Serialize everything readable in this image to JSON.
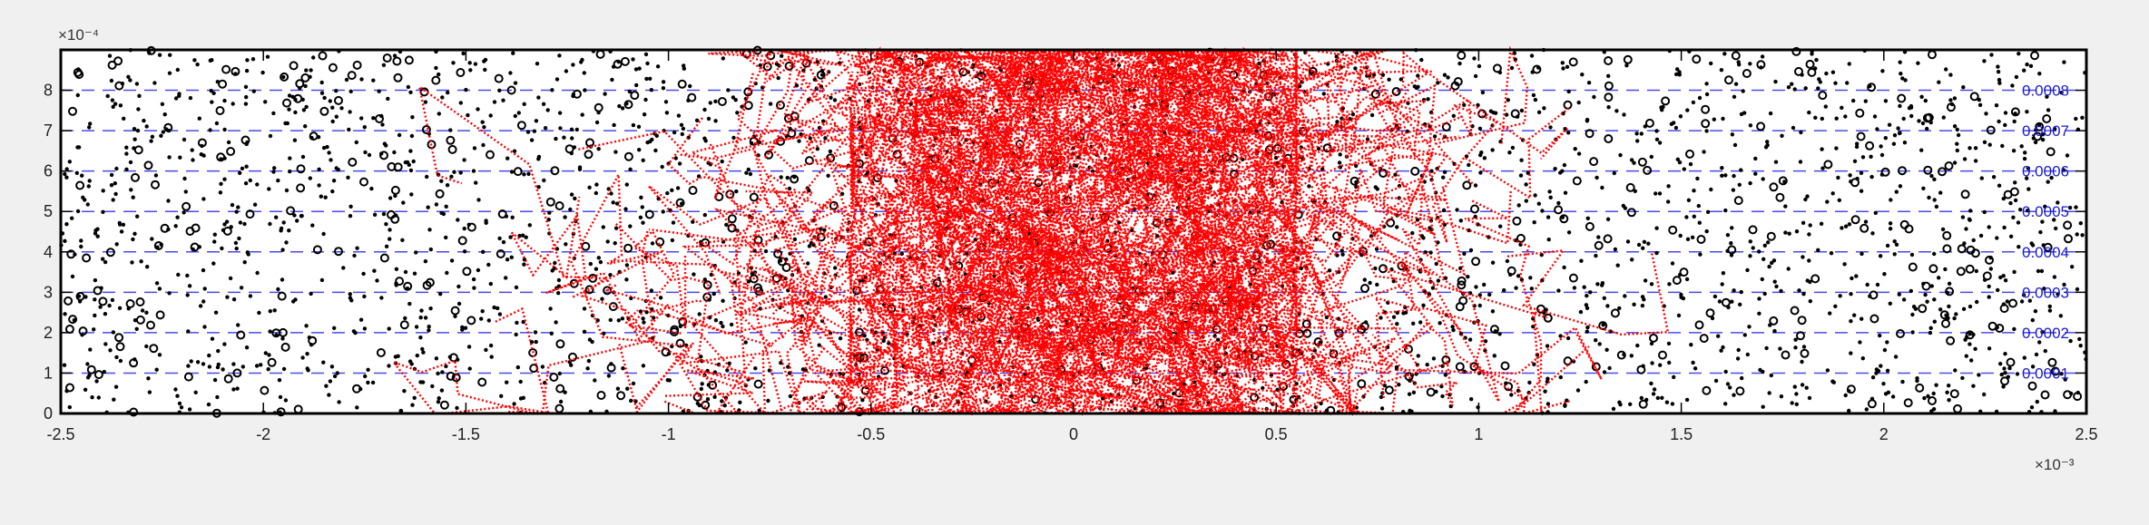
{
  "chart_data": {
    "type": "scatter",
    "title": "",
    "xlabel": "",
    "ylabel": "",
    "x_exponent_label": "×10⁻³",
    "y_exponent_label": "×10⁻⁴",
    "xlim": [
      -2.5,
      2.5
    ],
    "ylim": [
      0,
      9
    ],
    "x_ticks": [
      -2.5,
      -2,
      -1.5,
      -1,
      -0.5,
      0,
      0.5,
      1,
      1.5,
      2,
      2.5
    ],
    "x_tick_labels": [
      "-2.5",
      "-2",
      "-1.5",
      "-1",
      "-0.5",
      "0",
      "0.5",
      "1",
      "1.5",
      "2",
      "2.5"
    ],
    "y_ticks": [
      0,
      1,
      2,
      3,
      4,
      5,
      6,
      7,
      8
    ],
    "y_tick_labels": [
      "0",
      "1",
      "2",
      "3",
      "4",
      "5",
      "6",
      "7",
      "8"
    ],
    "contour_levels": [
      1,
      2,
      3,
      4,
      5,
      6,
      7,
      8
    ],
    "contour_labels": [
      "0.0001",
      "0.0002",
      "0.0003",
      "0.0004",
      "0.0005",
      "0.0006",
      "0.0007",
      "0.0008"
    ],
    "series": [
      {
        "marker": "dot",
        "color": "#000000",
        "description_values": "particles uniformly scattered over full domain",
        "count": 2600
      },
      {
        "marker": "circle",
        "color": "#000000",
        "count": 520
      },
      {
        "marker": "dotted-path",
        "color": "#ff0000",
        "density_center_x": 0,
        "spread_x": 0.55,
        "count": 380
      }
    ],
    "colors": {
      "contour": "#4a4ae6",
      "label": "#1a1acc",
      "trajectory": "#ff0000",
      "background": "#f0f0f0",
      "axes_bg": "#ffffff"
    }
  }
}
